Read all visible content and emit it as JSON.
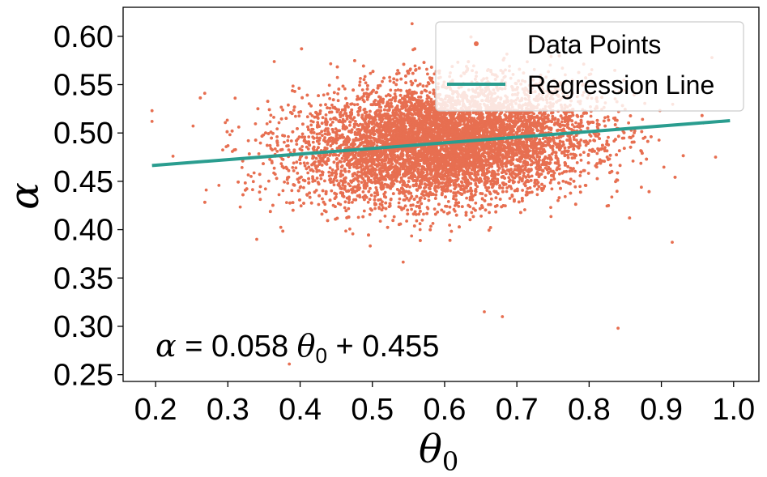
{
  "chart_data": {
    "type": "scatter",
    "title": "",
    "xlabel": "θ",
    "xlabel_subscript": "0",
    "ylabel": "α",
    "xlim": [
      0.155,
      1.035
    ],
    "ylim": [
      0.243,
      0.63
    ],
    "x_ticks": [
      "0.2",
      "0.3",
      "0.4",
      "0.5",
      "0.6",
      "0.7",
      "0.8",
      "0.9",
      "1.0"
    ],
    "y_ticks": [
      "0.25",
      "0.30",
      "0.35",
      "0.40",
      "0.45",
      "0.50",
      "0.55",
      "0.60"
    ],
    "grid": false,
    "legend_position": "top-right",
    "series": [
      {
        "name": "Data Points",
        "kind": "scatter",
        "color": "#E76F51",
        "n_points": 10000,
        "x_mean": 0.6,
        "x_std": 0.1,
        "y_mean": 0.49,
        "y_std": 0.03,
        "outliers": [
          {
            "x": 0.195,
            "y": 0.523
          },
          {
            "x": 0.195,
            "y": 0.512
          },
          {
            "x": 0.268,
            "y": 0.541
          },
          {
            "x": 0.27,
            "y": 0.441
          },
          {
            "x": 0.385,
            "y": 0.261
          },
          {
            "x": 0.555,
            "y": 0.613
          },
          {
            "x": 0.68,
            "y": 0.31
          },
          {
            "x": 0.84,
            "y": 0.298
          },
          {
            "x": 0.915,
            "y": 0.387
          },
          {
            "x": 0.97,
            "y": 0.578
          },
          {
            "x": 0.975,
            "y": 0.475
          },
          {
            "x": 0.655,
            "y": 0.315
          },
          {
            "x": 0.31,
            "y": 0.536
          },
          {
            "x": 0.34,
            "y": 0.39
          }
        ]
      },
      {
        "name": "Regression Line",
        "kind": "line",
        "color": "#2A9D8F",
        "slope": 0.058,
        "intercept": 0.455,
        "x_range": [
          0.195,
          0.995
        ]
      }
    ],
    "annotation": {
      "lhs": "α",
      "equals": " = 0.058 ",
      "theta": "θ",
      "theta_subscript": "0",
      "rhs": " + 0.455"
    }
  }
}
